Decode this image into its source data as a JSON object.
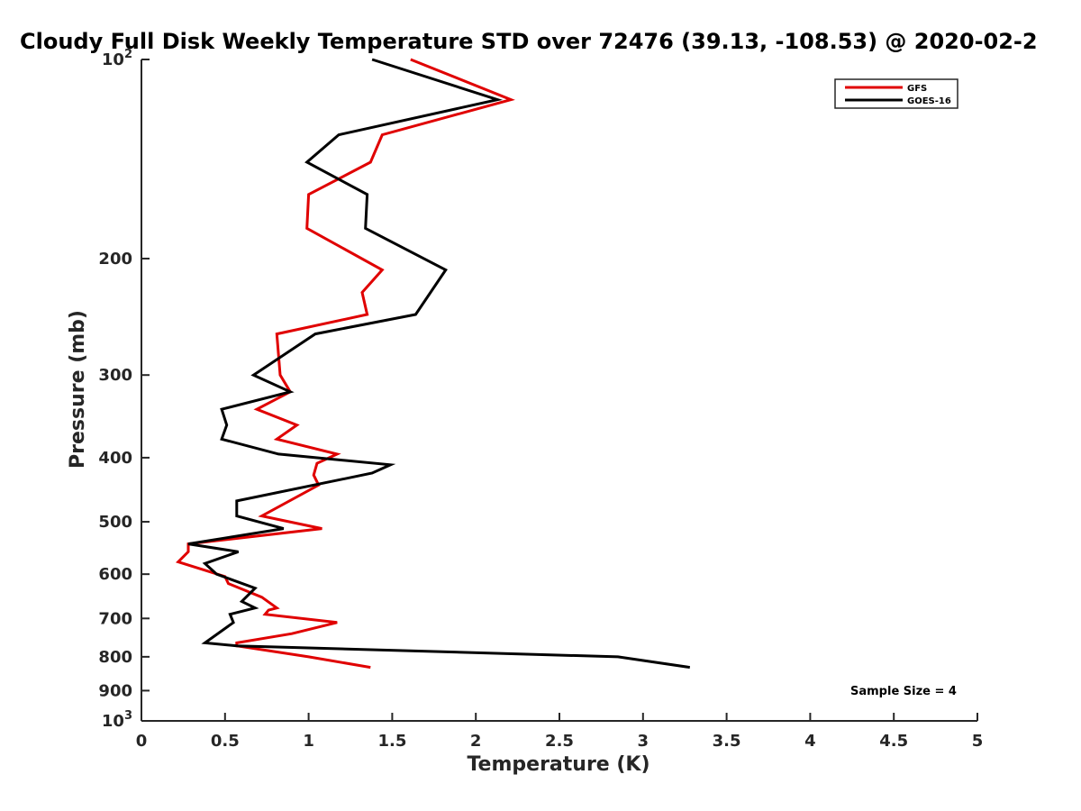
{
  "chart_data": {
    "type": "line",
    "title": "Cloudy Full Disk Weekly Temperature STD over 72476 (39.13, -108.53) @ 2020-02-2",
    "xlabel": "Temperature (K)",
    "ylabel": "Pressure (mb)",
    "xlim": [
      0,
      5
    ],
    "ylim": [
      100,
      1000
    ],
    "y_scale": "log",
    "y_reversed": true,
    "x_ticks": [
      {
        "value": 0,
        "label": "0"
      },
      {
        "value": 0.5,
        "label": "0.5"
      },
      {
        "value": 1,
        "label": "1"
      },
      {
        "value": 1.5,
        "label": "1.5"
      },
      {
        "value": 2,
        "label": "2"
      },
      {
        "value": 2.5,
        "label": "2.5"
      },
      {
        "value": 3,
        "label": "3"
      },
      {
        "value": 3.5,
        "label": "3.5"
      },
      {
        "value": 4,
        "label": "4"
      },
      {
        "value": 4.5,
        "label": "4.5"
      },
      {
        "value": 5,
        "label": "5"
      }
    ],
    "y_ticks": [
      {
        "value": 100,
        "base": "10",
        "exp": "2"
      },
      {
        "value": 200,
        "label": "200"
      },
      {
        "value": 300,
        "label": "300"
      },
      {
        "value": 400,
        "label": "400"
      },
      {
        "value": 500,
        "label": "500"
      },
      {
        "value": 600,
        "label": "600"
      },
      {
        "value": 700,
        "label": "700"
      },
      {
        "value": 800,
        "label": "800"
      },
      {
        "value": 900,
        "label": "900"
      },
      {
        "value": 1000,
        "base": "10",
        "exp": "3"
      }
    ],
    "grid": false,
    "legend_position": "top-right",
    "annotation": "Sample Size = 4",
    "series": [
      {
        "name": "GFS",
        "color": "#e00000",
        "points": [
          [
            1.61,
            100
          ],
          [
            2.21,
            115
          ],
          [
            1.44,
            130
          ],
          [
            1.37,
            143
          ],
          [
            1.0,
            160
          ],
          [
            0.99,
            180
          ],
          [
            1.44,
            208
          ],
          [
            1.32,
            225
          ],
          [
            1.35,
            243
          ],
          [
            0.81,
            260
          ],
          [
            0.83,
            300
          ],
          [
            0.89,
            318
          ],
          [
            0.69,
            338
          ],
          [
            0.93,
            357
          ],
          [
            0.81,
            375
          ],
          [
            1.17,
            395
          ],
          [
            1.05,
            408
          ],
          [
            1.03,
            425
          ],
          [
            1.06,
            440
          ],
          [
            0.72,
            490
          ],
          [
            1.08,
            512
          ],
          [
            0.28,
            540
          ],
          [
            0.28,
            555
          ],
          [
            0.22,
            575
          ],
          [
            0.5,
            605
          ],
          [
            0.52,
            620
          ],
          [
            0.72,
            650
          ],
          [
            0.81,
            675
          ],
          [
            0.76,
            680
          ],
          [
            0.74,
            690
          ],
          [
            1.17,
            710
          ],
          [
            0.9,
            738
          ],
          [
            0.57,
            762
          ],
          [
            0.57,
            770
          ],
          [
            1.0,
            800
          ],
          [
            1.37,
            830
          ]
        ]
      },
      {
        "name": "GOES-16",
        "color": "#000000",
        "points": [
          [
            1.38,
            100
          ],
          [
            2.13,
            115
          ],
          [
            1.18,
            130
          ],
          [
            0.99,
            143
          ],
          [
            1.35,
            160
          ],
          [
            1.34,
            180
          ],
          [
            1.82,
            208
          ],
          [
            1.64,
            243
          ],
          [
            1.04,
            260
          ],
          [
            0.67,
            300
          ],
          [
            0.89,
            318
          ],
          [
            0.48,
            338
          ],
          [
            0.51,
            357
          ],
          [
            0.48,
            375
          ],
          [
            0.82,
            395
          ],
          [
            1.49,
            410
          ],
          [
            1.38,
            422
          ],
          [
            0.57,
            465
          ],
          [
            0.57,
            478
          ],
          [
            0.57,
            490
          ],
          [
            0.85,
            512
          ],
          [
            0.28,
            540
          ],
          [
            0.58,
            555
          ],
          [
            0.38,
            578
          ],
          [
            0.45,
            600
          ],
          [
            0.68,
            630
          ],
          [
            0.6,
            660
          ],
          [
            0.68,
            675
          ],
          [
            0.53,
            690
          ],
          [
            0.55,
            710
          ],
          [
            0.38,
            762
          ],
          [
            0.57,
            770
          ],
          [
            2.85,
            800
          ],
          [
            3.28,
            830
          ]
        ]
      }
    ]
  }
}
